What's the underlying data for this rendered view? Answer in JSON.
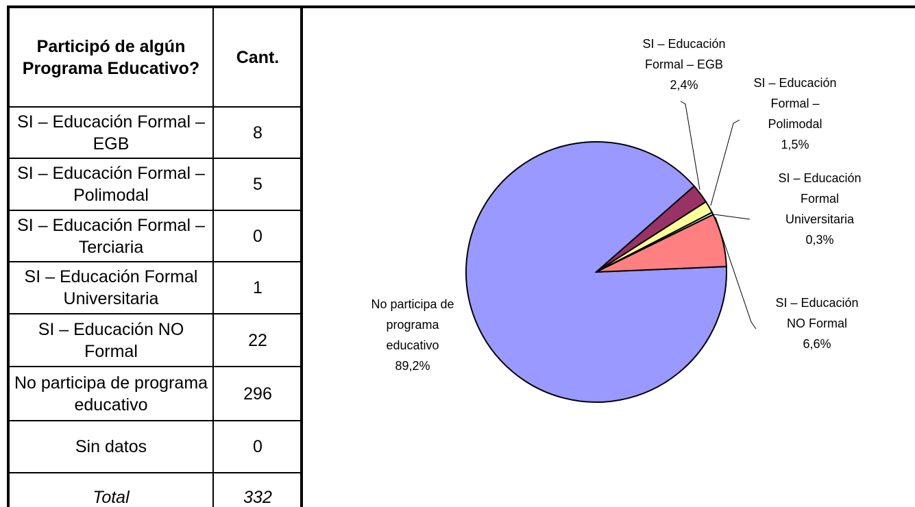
{
  "table": {
    "header_question": "Participó de algún Programa Educativo?",
    "header_count": "Cant.",
    "rows": [
      {
        "label": "SI – Educación Formal – EGB",
        "value": "8"
      },
      {
        "label": "SI – Educación Formal – Polimodal",
        "value": "5"
      },
      {
        "label": "SI – Educación Formal – Terciaria",
        "value": "0"
      },
      {
        "label": "SI – Educación Formal Universitaria",
        "value": "1"
      },
      {
        "label": "SI – Educación NO Formal",
        "value": "22"
      },
      {
        "label": "No participa de programa educativo",
        "value": "296"
      },
      {
        "label": "Sin datos",
        "value": "0"
      }
    ],
    "total_label": "Total",
    "total_value": "332"
  },
  "chart_data": {
    "type": "pie",
    "title": "",
    "slices": [
      {
        "name": "No participa de programa educativo",
        "value": 89.2,
        "label": [
          "No participa de",
          "programa",
          "educativo",
          "89,2%"
        ],
        "color": "#9999FF"
      },
      {
        "name": "SI – Educación Formal – EGB",
        "value": 2.4,
        "label": [
          "SI – Educación",
          "Formal – EGB",
          "2,4%"
        ],
        "color": "#993366"
      },
      {
        "name": "SI – Educación Formal – Polimodal",
        "value": 1.5,
        "label": [
          "SI – Educación",
          "Formal –",
          "Polimodal",
          "1,5%"
        ],
        "color": "#FFFF99"
      },
      {
        "name": "SI – Educación Formal Universitaria",
        "value": 0.3,
        "label": [
          "SI – Educación",
          "Formal",
          "Universitaria",
          "0,3%"
        ],
        "color": "#CCFFFF"
      },
      {
        "name": "SI – Educación NO Formal",
        "value": 6.6,
        "label": [
          "SI – Educación",
          "NO Formal",
          "6,6%"
        ],
        "color": "#FF8080"
      }
    ]
  }
}
